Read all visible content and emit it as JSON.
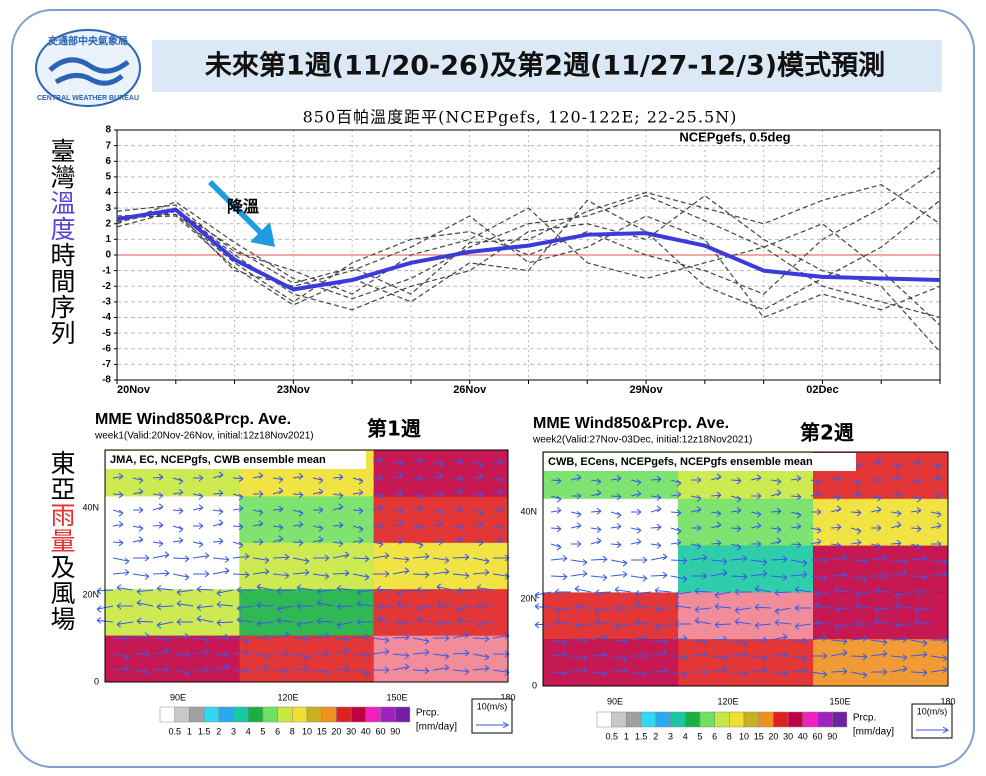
{
  "header": {
    "logo_top": "交通部中央氣象局",
    "logo_bottom": "CENTRAL WEATHER BUREAU",
    "title": "未來第1週(11/20-26)及第2週(11/27-12/3)模式預測"
  },
  "side_labels": [
    [
      "臺灣",
      "溫度",
      "時間序列"
    ],
    [
      "東亞",
      "雨量",
      "及風場"
    ]
  ],
  "chart_data": {
    "type": "line",
    "title": "850百帕溫度距平(NCEPgefs, 120-122E; 22-25.5N)",
    "annotations": [
      "NCEPgefs, 0.5deg",
      "降溫"
    ],
    "categories": [
      "20Nov",
      null,
      null,
      "23Nov",
      null,
      null,
      "26Nov",
      null,
      null,
      "29Nov",
      null,
      null,
      "02Dec",
      null,
      null
    ],
    "ylim": [
      -8,
      8
    ],
    "yticks": [
      -8,
      -7,
      -6,
      -5,
      -4,
      -3,
      -2,
      -1,
      0,
      1,
      2,
      3,
      4,
      5,
      6,
      7,
      8
    ],
    "grid": true,
    "series": [
      {
        "color": "#444444",
        "dashed": true,
        "values": [
          2.0,
          3.4,
          0.8,
          -1.5,
          -2.8,
          -1.5,
          0.5,
          2.0,
          2.5,
          3.8,
          2.2,
          0.5,
          -2.0,
          -3.0,
          -4.0
        ]
      },
      {
        "color": "#444444",
        "dashed": true,
        "values": [
          2.5,
          2.6,
          -0.5,
          -3.0,
          -0.5,
          1.0,
          1.5,
          0.0,
          1.5,
          0.0,
          -1.0,
          -2.5,
          1.0,
          3.0,
          5.6
        ]
      },
      {
        "color": "#444444",
        "dashed": true,
        "values": [
          2.2,
          3.0,
          0.0,
          -2.5,
          -3.5,
          -2.0,
          -1.0,
          1.5,
          2.0,
          1.0,
          3.8,
          1.0,
          -1.0,
          -2.0,
          -6.2
        ]
      },
      {
        "color": "#444444",
        "dashed": true,
        "values": [
          1.8,
          2.8,
          -1.0,
          -2.0,
          -1.0,
          0.5,
          2.5,
          -0.5,
          0.5,
          2.5,
          1.0,
          -4.0,
          -2.5,
          -3.5,
          -2.0
        ]
      },
      {
        "color": "#444444",
        "dashed": true,
        "values": [
          2.8,
          3.2,
          0.2,
          -1.0,
          -2.5,
          0.0,
          1.0,
          3.0,
          -0.5,
          -1.5,
          -0.5,
          0.5,
          2.0,
          -1.0,
          -4.5
        ]
      },
      {
        "color": "#444444",
        "dashed": true,
        "values": [
          2.4,
          2.5,
          -0.8,
          -3.2,
          -1.5,
          -3.0,
          -0.5,
          -1.0,
          3.5,
          1.5,
          -2.0,
          -3.5,
          -1.5,
          0.5,
          3.5
        ]
      },
      {
        "color": "#444444",
        "dashed": true,
        "values": [
          2.1,
          2.9,
          0.4,
          -1.8,
          -0.8,
          -2.5,
          0.8,
          1.0,
          2.8,
          4.0,
          3.0,
          2.0,
          3.5,
          4.5,
          2.0
        ]
      },
      {
        "color": "#3b3bdc",
        "dashed": false,
        "values": [
          2.3,
          2.9,
          -0.3,
          -2.2,
          -1.6,
          -0.5,
          0.2,
          0.6,
          1.3,
          1.4,
          0.6,
          -1.0,
          -1.4,
          -1.5,
          -1.6
        ]
      }
    ]
  },
  "maps": [
    {
      "title": "MME Wind850&Prcp. Ave.",
      "subtitle": "week1(Valid:20Nov-26Nov, initial:12z18Nov2021)",
      "week": "第1週",
      "models": "JMA, EC, NCEPgfs, CWB ensemble mean",
      "lat_labels": [
        "40N",
        "20N",
        "0"
      ],
      "lon_labels": [
        "90E",
        "120E",
        "150E",
        "180"
      ],
      "colorbar_labels": [
        "0.5",
        "1",
        "1.5",
        "2",
        "3",
        "4",
        "5",
        "6",
        "8",
        "10",
        "15",
        "20",
        "30",
        "40",
        "60",
        "90"
      ],
      "unit_name": "Prcp.",
      "unit": "[mm/day]",
      "vector_scale": "10(m/s)"
    },
    {
      "title": "MME Wind850&Prcp. Ave.",
      "subtitle": "week2(Valid:27Nov-03Dec, initial:12z18Nov2021)",
      "week": "第2週",
      "models": "CWB, ECens, NCEPgefs, NCEPgfs ensemble mean",
      "lat_labels": [
        "40N",
        "20N",
        "0"
      ],
      "lon_labels": [
        "90E",
        "120E",
        "150E",
        "180"
      ],
      "colorbar_labels": [
        "0.5",
        "1",
        "1.5",
        "2",
        "3",
        "4",
        "5",
        "6",
        "8",
        "10",
        "15",
        "20",
        "30",
        "40",
        "60",
        "90"
      ],
      "unit_name": "Prcp.",
      "unit": "[mm/day]",
      "vector_scale": "10(m/s)"
    }
  ]
}
